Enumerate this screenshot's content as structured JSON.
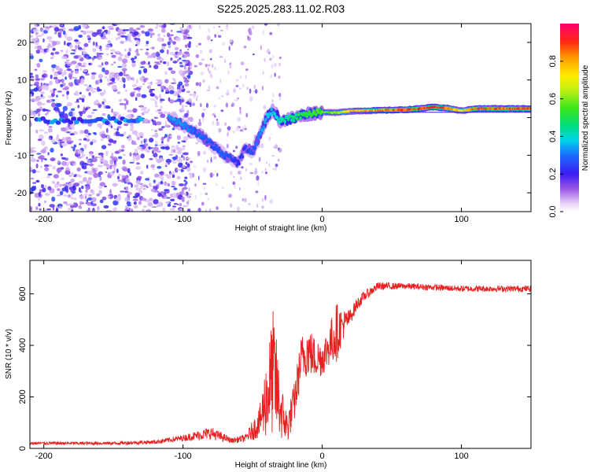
{
  "title": "S225.2025.283.11.02.R03",
  "chart_data": [
    {
      "type": "heatmap",
      "xlabel": "Height of straight line (km)",
      "ylabel": "Frequency (Hz)",
      "xlim": [
        -210,
        150
      ],
      "ylim": [
        -25,
        25
      ],
      "xticks": [
        "-200",
        "-100",
        "0",
        "100"
      ],
      "xtick_values": [
        -200,
        -100,
        0,
        100
      ],
      "yticks": [
        "-20",
        "-10",
        "0",
        "10",
        "20"
      ],
      "ytick_values": [
        -20,
        -10,
        0,
        10,
        20
      ],
      "colorbar": {
        "label": "Normalized spectral amplitude",
        "range": [
          0,
          1
        ],
        "ticks": [
          "0.0",
          "0.2",
          "0.4",
          "0.6",
          "0.8"
        ],
        "tick_values": [
          0,
          0.2,
          0.4,
          0.6,
          0.8
        ]
      },
      "ridge": {
        "x": [
          -110,
          -100,
          -90,
          -80,
          -70,
          -60,
          -55,
          -50,
          -45,
          -40,
          -35,
          -30,
          -20,
          -10,
          0,
          10,
          20,
          40,
          60,
          70,
          80,
          90,
          100,
          110,
          150
        ],
        "y": [
          0,
          -2,
          -4,
          -7,
          -10,
          -12,
          -8,
          -9,
          -5,
          0,
          2,
          -1,
          0,
          1,
          1.5,
          1.3,
          1.7,
          1.9,
          2.1,
          2.4,
          2.8,
          2.5,
          1.8,
          2.4,
          2.4
        ],
        "amplitude": [
          0.35,
          0.35,
          0.3,
          0.3,
          0.3,
          0.25,
          0.25,
          0.3,
          0.35,
          0.4,
          0.4,
          0.45,
          0.5,
          0.55,
          0.6,
          0.65,
          0.8,
          0.9,
          0.95,
          0.95,
          1.0,
          0.9,
          0.75,
          0.95,
          0.95
        ]
      },
      "noise_region_x": [
        -210,
        -100
      ]
    },
    {
      "type": "line",
      "xlabel": "Height of straight line (km)",
      "ylabel": "SNR (10 * v/v)",
      "xlim": [
        -210,
        150
      ],
      "ylim": [
        0,
        730
      ],
      "xticks": [
        "-200",
        "-100",
        "0",
        "100"
      ],
      "xtick_values": [
        -200,
        -100,
        0,
        100
      ],
      "yticks": [
        "0",
        "200",
        "400",
        "600"
      ],
      "ytick_values": [
        0,
        200,
        400,
        600
      ],
      "color": "#e82020",
      "envelope": {
        "x": [
          -210,
          -150,
          -120,
          -100,
          -80,
          -65,
          -55,
          -45,
          -40,
          -35,
          -30,
          -25,
          -20,
          -15,
          -10,
          -5,
          0,
          5,
          10,
          15,
          20,
          25,
          30,
          40,
          60,
          100,
          150
        ],
        "mean": [
          20,
          20,
          25,
          40,
          60,
          30,
          40,
          100,
          200,
          300,
          150,
          80,
          180,
          350,
          380,
          350,
          350,
          400,
          450,
          480,
          510,
          560,
          590,
          630,
          630,
          620,
          620
        ],
        "noise": [
          6,
          6,
          8,
          12,
          25,
          10,
          15,
          60,
          160,
          250,
          120,
          60,
          80,
          90,
          100,
          80,
          70,
          80,
          120,
          60,
          30,
          25,
          20,
          15,
          12,
          12,
          12
        ]
      }
    }
  ]
}
